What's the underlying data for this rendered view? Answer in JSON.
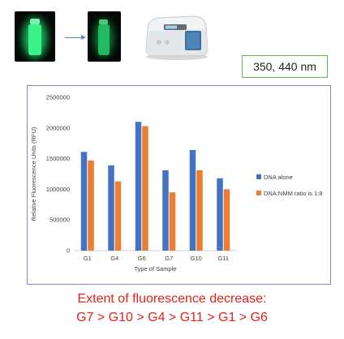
{
  "wavelength_label": "350, 440 nm",
  "caption": {
    "line1": "Extent of fluorescence decrease:",
    "line2": "G7 > G10 > G4 > G11 > G1 > G6"
  },
  "colors": {
    "series_dna": "#4472c4",
    "series_nmm": "#ed7d31",
    "caption": "#e8201e",
    "frame": "#9a7cc8",
    "wavelength_border": "#78a85a"
  },
  "icons": [
    "glowing-vial-icon",
    "dimmed-vial-icon",
    "arrow-right-icon",
    "spectrofluorometer-icon"
  ],
  "chart_data": {
    "type": "bar",
    "categories": [
      "G1",
      "G4",
      "G6",
      "G7",
      "G10",
      "G11"
    ],
    "series": [
      {
        "name": "DNA alone",
        "values": [
          1610000,
          1390000,
          2100000,
          1310000,
          1640000,
          1180000
        ]
      },
      {
        "name": "DNA:NMM ratio is 1:8",
        "values": [
          1470000,
          1130000,
          2030000,
          950000,
          1310000,
          1000000
        ]
      }
    ],
    "xlabel": "Type of Sample",
    "ylabel": "Relative Fluorescence Units (RFU)",
    "ylim": [
      0,
      2500000
    ],
    "yticks": [
      "0",
      "500000",
      "1000000",
      "1500000",
      "2000000",
      "2500000"
    ],
    "grid": false,
    "legend_position": "right"
  }
}
